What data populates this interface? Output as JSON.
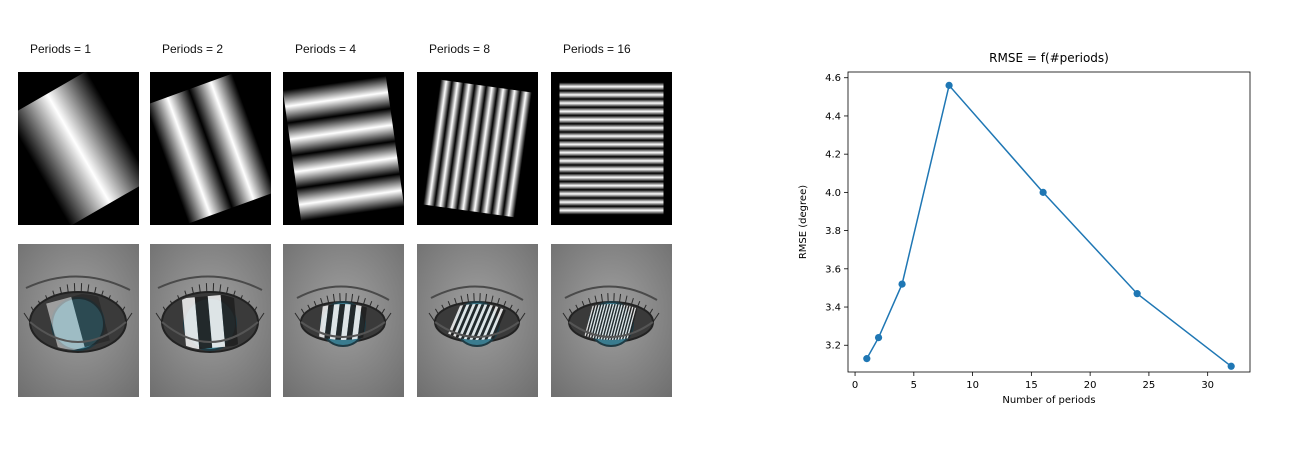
{
  "panels": [
    {
      "label": "Periods = 1",
      "periods": 1,
      "angle": -30
    },
    {
      "label": "Periods = 2",
      "periods": 2,
      "angle": -20
    },
    {
      "label": "Periods = 4",
      "periods": 4,
      "angle": -8
    },
    {
      "label": "Periods = 8",
      "periods": 8,
      "angle": 8
    },
    {
      "label": "Periods = 16",
      "periods": 16,
      "angle": 0
    }
  ],
  "colors": {
    "line": "#1f77b4",
    "marker": "#1f77b4",
    "iris": "#3a7c8f",
    "skin": "#8c8c8c"
  },
  "chart_data": {
    "type": "line",
    "title": "RMSE = f(#periods)",
    "xlabel": "Number of periods",
    "ylabel": "RMSE (degree)",
    "x": [
      1,
      2,
      4,
      8,
      16,
      24,
      32
    ],
    "series": [
      {
        "values": [
          3.13,
          3.24,
          3.52,
          4.56,
          4.0,
          3.47,
          3.09
        ]
      }
    ],
    "xlim": [
      -0.6,
      33.6
    ],
    "ylim": [
      3.06,
      4.63
    ],
    "xticks": [
      0,
      5,
      10,
      15,
      20,
      25,
      30
    ],
    "yticks": [
      3.2,
      3.4,
      3.6,
      3.8,
      4.0,
      4.2,
      4.4,
      4.6
    ],
    "xtick_labels": [
      "0",
      "5",
      "10",
      "15",
      "20",
      "25",
      "30"
    ],
    "ytick_labels": [
      "3.2",
      "3.4",
      "3.6",
      "3.8",
      "4.0",
      "4.2",
      "4.4",
      "4.6"
    ],
    "grid": false,
    "legend": "none"
  }
}
